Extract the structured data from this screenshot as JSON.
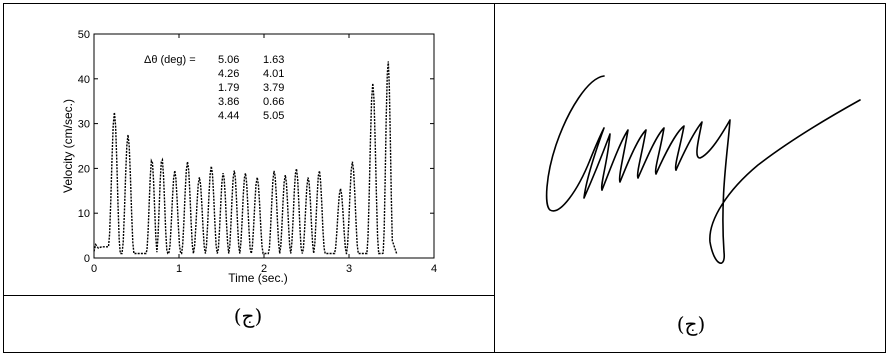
{
  "captions": {
    "left": "(ج)",
    "right": "(ج)"
  },
  "signature": {
    "text": "Cammy"
  },
  "chart_data": {
    "type": "line",
    "title": "",
    "xlabel": "Time (sec.)",
    "ylabel": "Velocity (cm/sec.)",
    "xlim": [
      0,
      4
    ],
    "ylim": [
      0,
      50
    ],
    "xticks": [
      0,
      1,
      2,
      3,
      4
    ],
    "yticks": [
      0,
      10,
      20,
      30,
      40,
      50
    ],
    "grid": false,
    "line_style": "dashed",
    "annotation": {
      "label": "Δθ (deg) =",
      "col1": [
        "5.06",
        "4.26",
        "1.79",
        "3.86",
        "4.44"
      ],
      "col2": [
        "1.63",
        "4.01",
        "3.79",
        "0.66",
        "5.05"
      ]
    },
    "peaks": [
      {
        "t": 0.24,
        "v": 32.5
      },
      {
        "t": 0.4,
        "v": 27.5
      },
      {
        "t": 0.68,
        "v": 22.0
      },
      {
        "t": 0.8,
        "v": 22.2
      },
      {
        "t": 0.95,
        "v": 19.5
      },
      {
        "t": 1.1,
        "v": 21.5
      },
      {
        "t": 1.24,
        "v": 18.0
      },
      {
        "t": 1.38,
        "v": 20.5
      },
      {
        "t": 1.52,
        "v": 19.0
      },
      {
        "t": 1.65,
        "v": 19.5
      },
      {
        "t": 1.78,
        "v": 19.0
      },
      {
        "t": 1.92,
        "v": 18.0
      },
      {
        "t": 2.12,
        "v": 19.5
      },
      {
        "t": 2.25,
        "v": 18.5
      },
      {
        "t": 2.38,
        "v": 20.0
      },
      {
        "t": 2.52,
        "v": 18.0
      },
      {
        "t": 2.65,
        "v": 19.5
      },
      {
        "t": 2.9,
        "v": 15.5
      },
      {
        "t": 3.04,
        "v": 21.5
      },
      {
        "t": 3.28,
        "v": 39.0
      },
      {
        "t": 3.46,
        "v": 44.0
      }
    ]
  }
}
